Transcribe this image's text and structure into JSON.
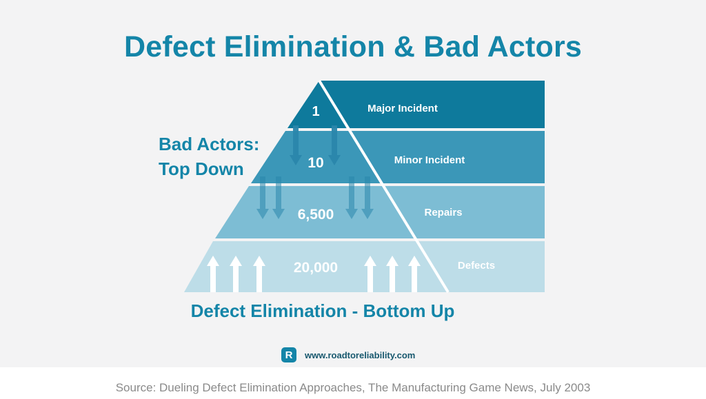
{
  "title": "Defect Elimination & Bad Actors",
  "left_label": {
    "line1": "Bad Actors:",
    "line2": "Top Down"
  },
  "bottom_label": "Defect Elimination - Bottom Up",
  "tiers": [
    {
      "value": "1",
      "label": "Major Incident",
      "color": "#0e7a9c"
    },
    {
      "value": "10",
      "label": "Minor Incident",
      "color": "#3b97b8"
    },
    {
      "value": "6,500",
      "label": "Repairs",
      "color": "#7dbdd4"
    },
    {
      "value": "20,000",
      "label": "Defects",
      "color": "#bddde8"
    }
  ],
  "arrow_colors": {
    "top_down": "#2a86ab",
    "bottom_up": "#ffffff"
  },
  "brand": {
    "logo_letter": "R",
    "url": "www.roadtoreliability.com"
  },
  "source": "Source: Dueling Defect Elimination Approaches, The Manufacturing Game News, July 2003"
}
